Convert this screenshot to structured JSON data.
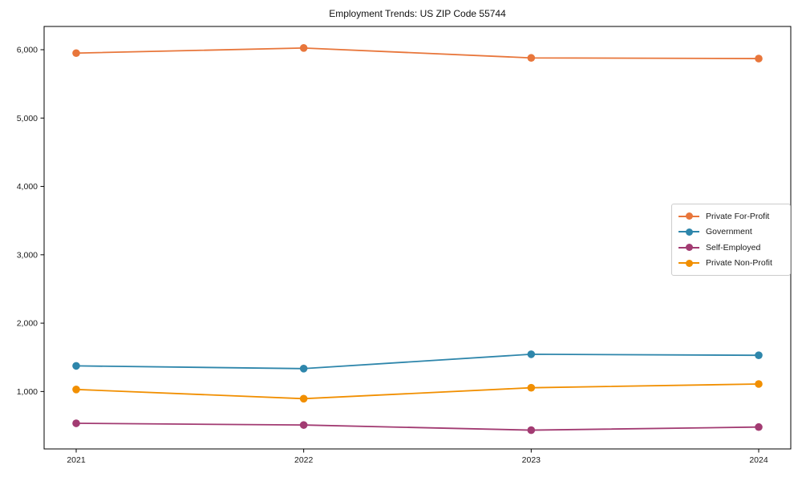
{
  "window": {
    "title": "Employment Trends: US ZIP Code 55744"
  },
  "chart_data": {
    "type": "line",
    "title": "Employment Trends: US ZIP Code 55744",
    "xlabel": "",
    "ylabel": "",
    "categories": [
      "2021",
      "2022",
      "2023",
      "2024"
    ],
    "series": [
      {
        "name": "Private For-Profit",
        "color": "#E8763B",
        "values": [
          5950,
          6025,
          5880,
          5870
        ]
      },
      {
        "name": "Government",
        "color": "#2E86AB",
        "values": [
          1375,
          1335,
          1545,
          1530
        ]
      },
      {
        "name": "Self-Employed",
        "color": "#A23B72",
        "values": [
          535,
          510,
          435,
          480
        ]
      },
      {
        "name": "Private Non-Profit",
        "color": "#F18F01",
        "values": [
          1030,
          895,
          1055,
          1110
        ]
      }
    ],
    "y_ticks": [
      1000,
      2000,
      3000,
      4000,
      5000,
      6000
    ],
    "y_tick_labels": [
      "1,000",
      "2,000",
      "3,000",
      "4,000",
      "5,000",
      "6,000"
    ],
    "ylim": [
      160,
      6340
    ],
    "grid": false,
    "legend_position": "center right",
    "marker": "circle",
    "frame_color": "#000000"
  }
}
